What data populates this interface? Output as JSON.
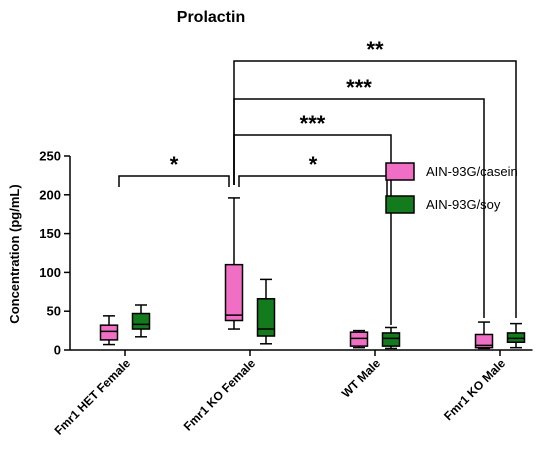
{
  "chart_data": {
    "type": "box",
    "title": "Prolactin",
    "xlabel": "",
    "ylabel": "Concentration (pg/mL)",
    "ylim": [
      0,
      250
    ],
    "yticks": [
      0,
      50,
      100,
      150,
      200,
      250
    ],
    "grid": false,
    "legend_position": "right",
    "categories": [
      "Fmr1 HET Female",
      "Fmr1 KO Female",
      "WT Male",
      "Fmr1 KO Male"
    ],
    "series": [
      {
        "name": "AIN-93G/casein",
        "color": "#f06fc4",
        "boxes": [
          {
            "min": 7,
            "q1": 13,
            "median": 24,
            "q3": 32,
            "max": 44
          },
          {
            "min": 27,
            "q1": 38,
            "median": 45,
            "q3": 110,
            "max": 196
          },
          {
            "min": 3,
            "q1": 5,
            "median": 15,
            "q3": 23,
            "max": 25
          },
          {
            "min": 2,
            "q1": 3,
            "median": 6,
            "q3": 20,
            "max": 36
          }
        ]
      },
      {
        "name": "AIN-93G/soy",
        "color": "#137a1e",
        "boxes": [
          {
            "min": 17,
            "q1": 27,
            "median": 33,
            "q3": 47,
            "max": 58
          },
          {
            "min": 8,
            "q1": 18,
            "median": 27,
            "q3": 66,
            "max": 91
          },
          {
            "min": 2,
            "q1": 5,
            "median": 15,
            "q3": 22,
            "max": 29
          },
          {
            "min": 3,
            "q1": 10,
            "median": 15,
            "q3": 22,
            "max": 34
          }
        ]
      }
    ],
    "significance": [
      {
        "label": "*",
        "from": "Fmr1 HET Female",
        "to": "Fmr1 KO Female"
      },
      {
        "label": "*",
        "from": "Fmr1 KO Female",
        "to": "WT Male"
      },
      {
        "label": "***",
        "from": "Fmr1 KO Female",
        "to": "WT Male"
      },
      {
        "label": "***",
        "from": "Fmr1 KO Female",
        "to": "Fmr1 KO Male"
      },
      {
        "label": "**",
        "from": "Fmr1 KO Female",
        "to": "Fmr1 KO Male"
      }
    ]
  }
}
